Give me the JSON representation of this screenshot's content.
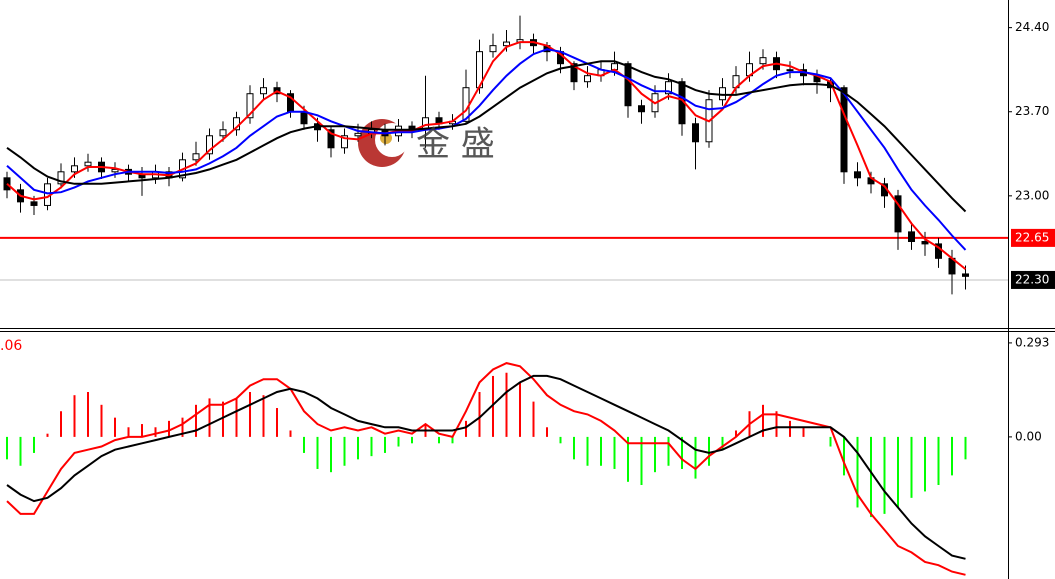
{
  "chart_data": [
    {
      "type": "candlestick",
      "open": [
        23.15,
        23.05,
        22.95,
        22.92,
        23.1,
        23.2,
        23.25,
        23.28,
        23.2,
        23.22,
        23.18,
        23.15,
        23.2,
        23.15,
        23.3,
        23.35,
        23.5,
        23.55,
        23.65,
        23.85,
        23.9,
        23.85,
        23.7,
        23.6,
        23.55,
        23.4,
        23.5,
        23.52,
        23.55,
        23.5,
        23.58,
        23.55,
        23.65,
        23.6,
        23.62,
        23.9,
        24.2,
        24.25,
        24.28,
        24.3,
        24.25,
        24.2,
        24.1,
        23.95,
        24.0,
        24.05,
        24.1,
        23.75,
        23.7,
        23.85,
        23.95,
        23.6,
        23.45,
        23.8,
        23.9,
        24.0,
        24.1,
        24.15,
        24.05,
        24.05,
        24.0,
        23.95,
        23.9,
        23.2,
        23.15,
        23.1,
        23.0,
        22.7,
        22.62,
        22.6,
        22.48,
        22.35
      ],
      "high": [
        23.2,
        23.1,
        23.0,
        23.15,
        23.27,
        23.32,
        23.35,
        23.32,
        23.28,
        23.26,
        23.24,
        23.26,
        23.24,
        23.36,
        23.45,
        23.56,
        23.62,
        23.7,
        23.92,
        23.98,
        23.95,
        23.88,
        23.75,
        23.65,
        23.58,
        23.56,
        23.6,
        23.62,
        23.6,
        23.64,
        23.62,
        24.0,
        23.7,
        23.68,
        24.05,
        24.3,
        24.35,
        24.38,
        24.5,
        24.35,
        24.28,
        24.24,
        24.12,
        24.08,
        24.12,
        24.2,
        24.12,
        23.8,
        23.92,
        24.02,
        23.98,
        23.65,
        23.88,
        23.98,
        24.08,
        24.2,
        24.22,
        24.2,
        24.12,
        24.1,
        24.05,
        23.98,
        23.92,
        23.28,
        23.2,
        23.15,
        23.05,
        22.78,
        22.7,
        22.65,
        22.55,
        22.42
      ],
      "low": [
        22.98,
        22.86,
        22.84,
        22.88,
        23.06,
        23.15,
        23.2,
        23.14,
        23.15,
        23.12,
        23.0,
        23.1,
        23.08,
        23.12,
        23.25,
        23.3,
        23.45,
        23.5,
        23.6,
        23.8,
        23.78,
        23.65,
        23.55,
        23.45,
        23.32,
        23.35,
        23.45,
        23.48,
        23.42,
        23.45,
        23.48,
        23.4,
        23.55,
        23.55,
        23.6,
        23.85,
        24.15,
        24.2,
        24.22,
        24.18,
        24.12,
        24.02,
        23.88,
        23.9,
        23.95,
        24.0,
        23.65,
        23.6,
        23.65,
        23.8,
        23.5,
        23.22,
        23.4,
        23.75,
        23.85,
        23.95,
        24.05,
        23.98,
        23.98,
        23.92,
        23.85,
        23.78,
        23.1,
        23.08,
        23.02,
        22.9,
        22.55,
        22.55,
        22.5,
        22.4,
        22.18,
        22.22
      ],
      "close": [
        23.05,
        22.95,
        22.92,
        23.1,
        23.2,
        23.25,
        23.28,
        23.2,
        23.22,
        23.18,
        23.15,
        23.2,
        23.15,
        23.3,
        23.35,
        23.5,
        23.55,
        23.65,
        23.85,
        23.9,
        23.85,
        23.7,
        23.6,
        23.55,
        23.4,
        23.5,
        23.52,
        23.55,
        23.5,
        23.58,
        23.55,
        23.65,
        23.6,
        23.62,
        23.9,
        24.2,
        24.25,
        24.28,
        24.3,
        24.25,
        24.2,
        24.1,
        23.95,
        24.0,
        24.05,
        24.1,
        23.75,
        23.7,
        23.85,
        23.95,
        23.6,
        23.45,
        23.8,
        23.9,
        24.0,
        24.1,
        24.15,
        24.05,
        24.05,
        24.0,
        23.95,
        23.9,
        23.2,
        23.15,
        23.1,
        23.0,
        22.7,
        22.62,
        22.6,
        22.48,
        22.35,
        22.33
      ],
      "up_color": "#ffffff",
      "down_color": "#000000",
      "edge_color": "#000000",
      "series": [
        {
          "color": "#ff0000",
          "values": [
            23.1,
            23.0,
            22.97,
            22.99,
            23.07,
            23.18,
            23.24,
            23.24,
            23.23,
            23.2,
            23.18,
            23.18,
            23.17,
            23.22,
            23.27,
            23.38,
            23.47,
            23.57,
            23.68,
            23.8,
            23.87,
            23.82,
            23.72,
            23.62,
            23.52,
            23.48,
            23.47,
            23.52,
            23.52,
            23.54,
            23.54,
            23.59,
            23.6,
            23.62,
            23.71,
            23.91,
            24.12,
            24.24,
            24.28,
            24.28,
            24.25,
            24.18,
            24.08,
            24.02,
            24.0,
            24.05,
            23.97,
            23.85,
            23.77,
            23.83,
            23.8,
            23.67,
            23.62,
            23.72,
            23.9,
            24.0,
            24.08,
            24.1,
            24.08,
            24.03,
            24.0,
            23.95,
            23.68,
            23.42,
            23.15,
            23.08,
            22.93,
            22.77,
            22.64,
            22.57,
            22.48,
            22.39
          ]
        },
        {
          "color": "#0000ff",
          "values": [
            23.25,
            23.15,
            23.05,
            23.02,
            23.03,
            23.07,
            23.12,
            23.15,
            23.18,
            23.2,
            23.2,
            23.2,
            23.19,
            23.2,
            23.22,
            23.27,
            23.33,
            23.4,
            23.5,
            23.58,
            23.66,
            23.7,
            23.7,
            23.67,
            23.62,
            23.58,
            23.54,
            23.53,
            23.52,
            23.53,
            23.53,
            23.55,
            23.56,
            23.58,
            23.64,
            23.75,
            23.88,
            24.0,
            24.1,
            24.18,
            24.22,
            24.2,
            24.15,
            24.1,
            24.05,
            24.03,
            23.98,
            23.92,
            23.87,
            23.87,
            23.82,
            23.75,
            23.72,
            23.73,
            23.78,
            23.85,
            23.93,
            24.0,
            24.03,
            24.03,
            24.01,
            23.98,
            23.85,
            23.7,
            23.55,
            23.4,
            23.22,
            23.05,
            22.92,
            22.8,
            22.67,
            22.55
          ]
        },
        {
          "color": "#000000",
          "values": [
            23.4,
            23.32,
            23.23,
            23.16,
            23.12,
            23.1,
            23.1,
            23.1,
            23.11,
            23.12,
            23.13,
            23.14,
            23.15,
            23.17,
            23.19,
            23.22,
            23.26,
            23.3,
            23.36,
            23.42,
            23.48,
            23.53,
            23.56,
            23.58,
            23.58,
            23.58,
            23.57,
            23.56,
            23.55,
            23.55,
            23.55,
            23.56,
            23.57,
            23.58,
            23.6,
            23.66,
            23.74,
            23.82,
            23.9,
            23.96,
            24.02,
            24.06,
            24.08,
            24.1,
            24.12,
            24.12,
            24.08,
            24.03,
            23.99,
            23.97,
            23.93,
            23.88,
            23.85,
            23.84,
            23.84,
            23.86,
            23.88,
            23.9,
            23.92,
            23.93,
            23.93,
            23.92,
            23.86,
            23.78,
            23.68,
            23.58,
            23.46,
            23.34,
            23.22,
            23.1,
            22.98,
            22.87
          ]
        }
      ],
      "ylim": [
        21.9,
        24.63
      ],
      "yticks": [
        {
          "value": 24.4,
          "label": "24.40"
        },
        {
          "value": 23.7,
          "label": "23.70"
        },
        {
          "value": 23.0,
          "label": "23.00"
        }
      ],
      "hlines": [
        {
          "value": 22.65,
          "label": "22.65",
          "color": "#ff0000",
          "label_bg": "#ff0000"
        },
        {
          "value": 22.3,
          "label": "22.30",
          "color": "#c0c0c0",
          "label_bg": "#000000"
        }
      ],
      "watermark": "金 盛"
    },
    {
      "type": "macd",
      "label": ".06",
      "values": [
        -0.07,
        -0.09,
        -0.05,
        0.01,
        0.08,
        0.13,
        0.14,
        0.1,
        0.06,
        0.03,
        0.04,
        0.03,
        0.05,
        0.06,
        0.1,
        0.12,
        0.11,
        0.12,
        0.14,
        0.13,
        0.09,
        0.02,
        -0.05,
        -0.1,
        -0.11,
        -0.09,
        -0.07,
        -0.06,
        -0.05,
        -0.03,
        -0.02,
        0.04,
        -0.02,
        -0.02,
        0.05,
        0.14,
        0.19,
        0.2,
        0.17,
        0.11,
        0.03,
        -0.02,
        -0.07,
        -0.09,
        -0.09,
        -0.1,
        -0.14,
        -0.15,
        -0.11,
        -0.09,
        -0.1,
        -0.13,
        -0.09,
        -0.04,
        0.02,
        0.08,
        0.1,
        0.08,
        0.05,
        0.03,
        0.0,
        -0.03,
        -0.12,
        -0.22,
        -0.25,
        -0.24,
        -0.22,
        -0.19,
        -0.17,
        -0.15,
        -0.12,
        -0.07
      ],
      "color_positive": "#ff0000",
      "color_negative": "#00ff00",
      "series": [
        {
          "color": "#ff0000",
          "values": [
            -0.2,
            -0.24,
            -0.24,
            -0.17,
            -0.1,
            -0.05,
            -0.04,
            -0.03,
            -0.01,
            0.0,
            0.0,
            0.01,
            0.02,
            0.04,
            0.07,
            0.1,
            0.1,
            0.12,
            0.16,
            0.18,
            0.18,
            0.15,
            0.08,
            0.04,
            0.02,
            0.03,
            0.02,
            0.03,
            0.01,
            0.02,
            0.01,
            0.04,
            0.01,
            0.0,
            0.08,
            0.17,
            0.21,
            0.23,
            0.22,
            0.18,
            0.13,
            0.1,
            0.08,
            0.07,
            0.05,
            0.02,
            -0.02,
            -0.02,
            -0.02,
            -0.02,
            -0.07,
            -0.1,
            -0.06,
            -0.03,
            0.0,
            0.04,
            0.07,
            0.07,
            0.06,
            0.05,
            0.04,
            0.03,
            -0.08,
            -0.18,
            -0.24,
            -0.29,
            -0.34,
            -0.36,
            -0.39,
            -0.4,
            -0.42,
            -0.43
          ]
        },
        {
          "color": "#000000",
          "values": [
            -0.15,
            -0.18,
            -0.2,
            -0.19,
            -0.16,
            -0.12,
            -0.09,
            -0.06,
            -0.04,
            -0.03,
            -0.02,
            -0.01,
            0.0,
            0.01,
            0.02,
            0.04,
            0.06,
            0.08,
            0.1,
            0.12,
            0.14,
            0.15,
            0.14,
            0.12,
            0.09,
            0.07,
            0.05,
            0.04,
            0.03,
            0.03,
            0.02,
            0.02,
            0.02,
            0.02,
            0.03,
            0.06,
            0.1,
            0.14,
            0.17,
            0.19,
            0.19,
            0.18,
            0.16,
            0.14,
            0.12,
            0.1,
            0.08,
            0.06,
            0.04,
            0.02,
            -0.01,
            -0.04,
            -0.05,
            -0.04,
            -0.02,
            0.0,
            0.02,
            0.03,
            0.03,
            0.03,
            0.03,
            0.03,
            0.0,
            -0.05,
            -0.11,
            -0.17,
            -0.22,
            -0.27,
            -0.31,
            -0.34,
            -0.37,
            -0.38
          ]
        }
      ],
      "ylim": [
        -0.443,
        0.327
      ],
      "yticks": [
        {
          "value": 0.293,
          "label": "0.293"
        },
        {
          "value": 0,
          "label": "0.00"
        }
      ]
    }
  ]
}
